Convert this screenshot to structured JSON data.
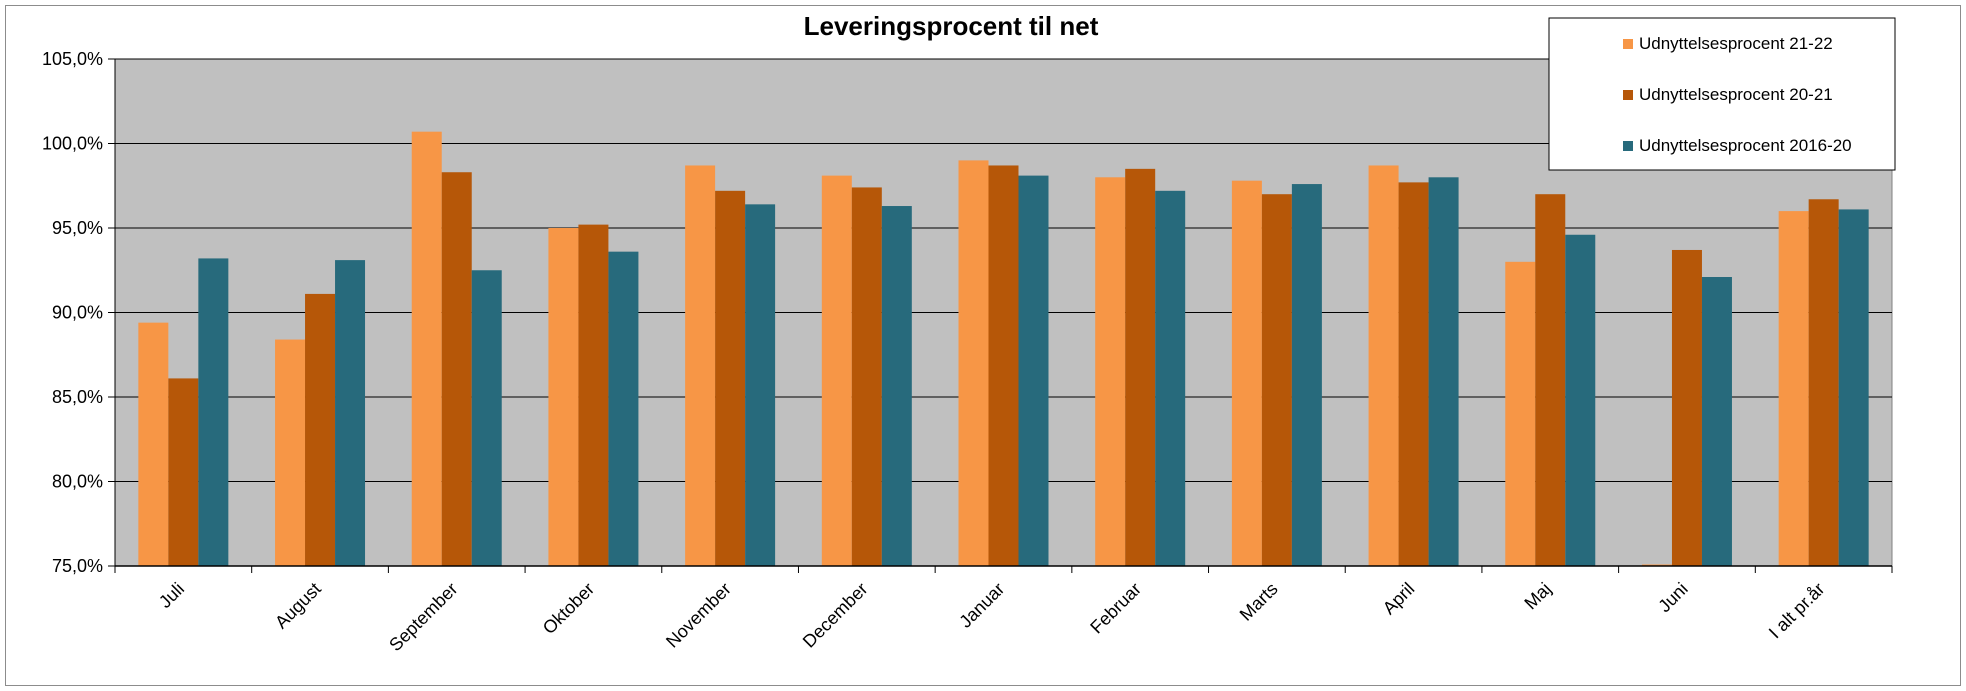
{
  "chart_data": {
    "type": "bar",
    "title": "Leveringsprocent til net",
    "xlabel": "",
    "ylabel": "",
    "ylim": [
      75,
      105
    ],
    "ytick_step": 5,
    "yticks": [
      "75,0%",
      "80,0%",
      "85,0%",
      "90,0%",
      "95,0%",
      "100,0%",
      "105,0%"
    ],
    "grid": true,
    "legend_position": "top-right",
    "plot_background": "#c0c0c0",
    "categories": [
      "Juli",
      "August",
      "September",
      "Oktober",
      "November",
      "December",
      "Januar",
      "Februar",
      "Marts",
      "April",
      "Maj",
      "Juni",
      "I alt pr.år"
    ],
    "series": [
      {
        "name": "Udnyttelsesprocent 21-22",
        "color": "#f79646",
        "values": [
          89.4,
          88.4,
          100.7,
          95.0,
          98.7,
          98.1,
          99.0,
          98.0,
          97.8,
          98.7,
          93.0,
          75.0,
          96.0
        ]
      },
      {
        "name": "Udnyttelsesprocent 20-21",
        "color": "#b65708",
        "values": [
          86.1,
          91.1,
          98.3,
          95.2,
          97.2,
          97.4,
          98.7,
          98.5,
          97.0,
          97.7,
          97.0,
          93.7,
          96.7
        ]
      },
      {
        "name": "Udnyttelsesprocent 2016-20",
        "color": "#276a7c",
        "values": [
          93.2,
          93.1,
          92.5,
          93.6,
          96.4,
          96.3,
          98.1,
          97.2,
          97.6,
          98.0,
          94.6,
          92.1,
          96.1
        ]
      }
    ]
  }
}
